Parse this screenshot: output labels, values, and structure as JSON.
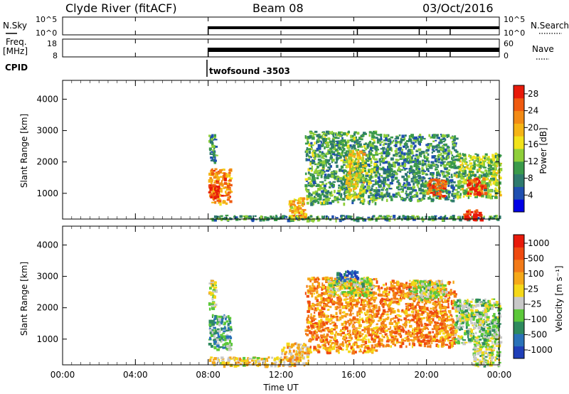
{
  "header": {
    "station": "Clyde River (fitACF)",
    "beam": "Beam 08",
    "date": "03/Oct/2016"
  },
  "colors": {
    "power_scale": [
      "#0000e6",
      "#1f4fb0",
      "#2e7a6e",
      "#3a9a4a",
      "#8fcf3a",
      "#f2e21a",
      "#f5b415",
      "#f28a15",
      "#ef5a10",
      "#e81a0a"
    ],
    "velocity_scale": [
      "#1f3fb8",
      "#2a72b8",
      "#2e8a5e",
      "#5cc83a",
      "#c8c8c8",
      "#f5d818",
      "#f5a818",
      "#f27a18",
      "#ef4a10",
      "#e81a0a"
    ]
  },
  "chart_data": [
    {
      "type": "line",
      "panel": "nsky-nsearch",
      "left_label": "N.Sky",
      "right_label": "N.Search",
      "left_ticks": [
        "10^5",
        "10^0"
      ],
      "right_ticks": [
        "10^5",
        "10^0"
      ],
      "data_start_hour": 8,
      "data_end_hour": 24,
      "dips_hours": [
        16.2,
        19.6,
        21.3
      ],
      "note_level": "near upper limit"
    },
    {
      "type": "line",
      "panel": "freq-nave",
      "left_label": "Freq.",
      "left_unit": "[MHz]",
      "right_label": "Nave",
      "left_ticks": [
        "18",
        "8"
      ],
      "right_ticks": [
        "60",
        "0"
      ],
      "data_start_hour": 8,
      "data_end_hour": 24
    },
    {
      "type": "table",
      "panel": "cpid",
      "label": "CPID",
      "program": "twofsound -3503",
      "start_hour": 8
    },
    {
      "type": "heatmap",
      "panel": "power",
      "ylabel": "Slant Range [km]",
      "yticks": [
        1000,
        2000,
        3000,
        4000
      ],
      "ylim": [
        180,
        4600
      ],
      "colorbar_label": "Power [dB]",
      "colorbar_ticks": [
        4,
        8,
        12,
        16,
        20,
        24,
        28
      ],
      "colorbar_range": [
        0,
        30
      ],
      "patches": [
        {
          "t0": 8.0,
          "t1": 9.2,
          "r0": 700,
          "r1": 1800,
          "level": 0.75
        },
        {
          "t0": 8.0,
          "t1": 8.5,
          "r0": 800,
          "r1": 1300,
          "level": 0.95
        },
        {
          "t0": 8.0,
          "t1": 8.4,
          "r0": 2000,
          "r1": 2900,
          "level": 0.3
        },
        {
          "t0": 8.0,
          "t1": 24.0,
          "r0": 180,
          "r1": 320,
          "level": 0.3
        },
        {
          "t0": 12.4,
          "t1": 13.4,
          "r0": 200,
          "r1": 900,
          "level": 0.65
        },
        {
          "t0": 13.3,
          "t1": 17.2,
          "r0": 700,
          "r1": 3000,
          "level": 0.35
        },
        {
          "t0": 15.5,
          "t1": 16.5,
          "r0": 900,
          "r1": 2400,
          "level": 0.55
        },
        {
          "t0": 17.2,
          "t1": 21.6,
          "r0": 800,
          "r1": 2900,
          "level": 0.3
        },
        {
          "t0": 20.0,
          "t1": 21.0,
          "r0": 900,
          "r1": 1500,
          "level": 0.85
        },
        {
          "t0": 21.6,
          "t1": 24.0,
          "r0": 900,
          "r1": 2300,
          "level": 0.45
        },
        {
          "t0": 22.2,
          "t1": 23.2,
          "r0": 1000,
          "r1": 1500,
          "level": 0.9
        },
        {
          "t0": 22.0,
          "t1": 23.0,
          "r0": 200,
          "r1": 500,
          "level": 0.95
        }
      ]
    },
    {
      "type": "heatmap",
      "panel": "velocity",
      "ylabel": "Slant Range [km]",
      "yticks": [
        1000,
        2000,
        3000,
        4000
      ],
      "ylim": [
        180,
        4600
      ],
      "colorbar_label": "Velocity [m s⁻¹]",
      "colorbar_ticks": [
        "1000",
        "500",
        "100",
        "25",
        "-25",
        "-100",
        "-500",
        "-1000"
      ],
      "patches": [
        {
          "t0": 8.0,
          "t1": 9.2,
          "r0": 700,
          "r1": 1800,
          "level": 0.3
        },
        {
          "t0": 8.0,
          "t1": 8.4,
          "r0": 2000,
          "r1": 2900,
          "level": 0.45
        },
        {
          "t0": 8.0,
          "t1": 12.0,
          "r0": 180,
          "r1": 450,
          "level": 0.55
        },
        {
          "t0": 12.0,
          "t1": 13.5,
          "r0": 180,
          "r1": 900,
          "level": 0.6
        },
        {
          "t0": 13.3,
          "t1": 17.2,
          "r0": 600,
          "r1": 3000,
          "level": 0.7
        },
        {
          "t0": 14.5,
          "t1": 17.0,
          "r0": 2400,
          "r1": 3000,
          "level": 0.45
        },
        {
          "t0": 17.2,
          "t1": 21.5,
          "r0": 800,
          "r1": 2900,
          "level": 0.72
        },
        {
          "t0": 19.0,
          "t1": 21.0,
          "r0": 2300,
          "r1": 2900,
          "level": 0.45
        },
        {
          "t0": 21.5,
          "t1": 24.0,
          "r0": 900,
          "r1": 2300,
          "level": 0.4
        },
        {
          "t0": 22.5,
          "t1": 24.0,
          "r0": 180,
          "r1": 900,
          "level": 0.45
        },
        {
          "t0": 15.0,
          "t1": 16.2,
          "r0": 2900,
          "r1": 3200,
          "level": 0.1
        }
      ]
    }
  ],
  "time_axis": {
    "label": "Time UT",
    "ticks": [
      "00:00",
      "04:00",
      "08:00",
      "12:00",
      "16:00",
      "20:00",
      "00:00"
    ],
    "range_hours": [
      0,
      24
    ]
  }
}
